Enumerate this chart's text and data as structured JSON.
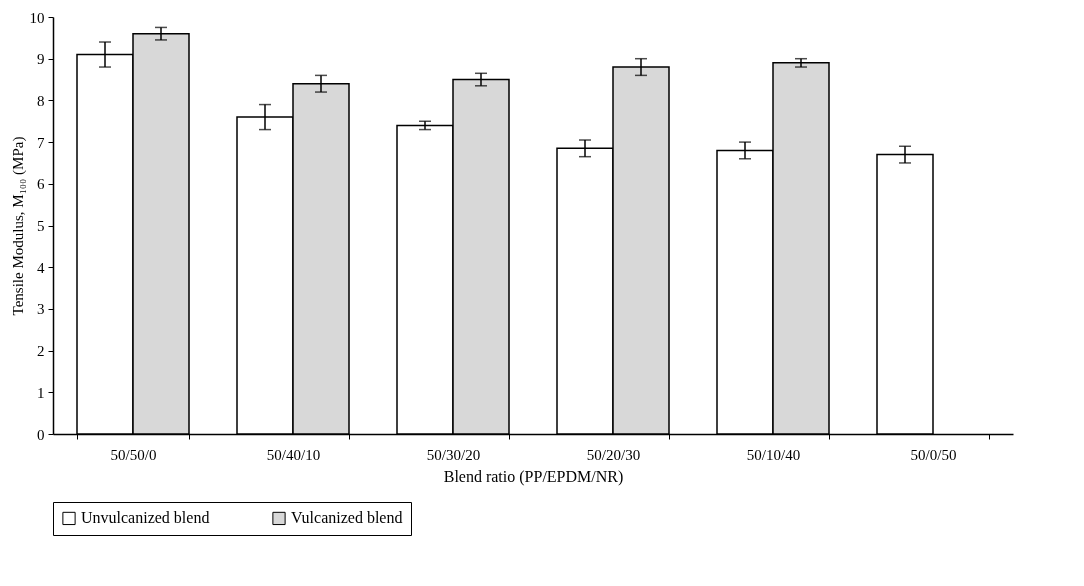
{
  "chart_data": {
    "type": "bar",
    "xlabel": "Blend ratio (PP/EPDM/NR)",
    "ylabel": "Tensile Modulus, M₁₀₀ (MPa)",
    "categories": [
      "50/50/0",
      "50/40/10",
      "50/30/20",
      "50/20/30",
      "50/10/40",
      "50/0/50"
    ],
    "series": [
      {
        "name": "Unvulcanized blend",
        "color": "#ffffff",
        "values": [
          9.1,
          7.6,
          7.4,
          6.85,
          6.8,
          6.7
        ],
        "errors": [
          0.3,
          0.3,
          0.1,
          0.2,
          0.2,
          0.2
        ]
      },
      {
        "name": "Vulcanized blend",
        "color": "#d8d8d8",
        "values": [
          9.6,
          8.4,
          8.5,
          8.8,
          8.9,
          null
        ],
        "errors": [
          0.15,
          0.2,
          0.15,
          0.2,
          0.1,
          null
        ]
      }
    ],
    "ylim": [
      0,
      10
    ],
    "yticks": [
      0,
      1,
      2,
      3,
      4,
      5,
      6,
      7,
      8,
      9,
      10
    ],
    "grid": false,
    "legend": "bottom"
  }
}
